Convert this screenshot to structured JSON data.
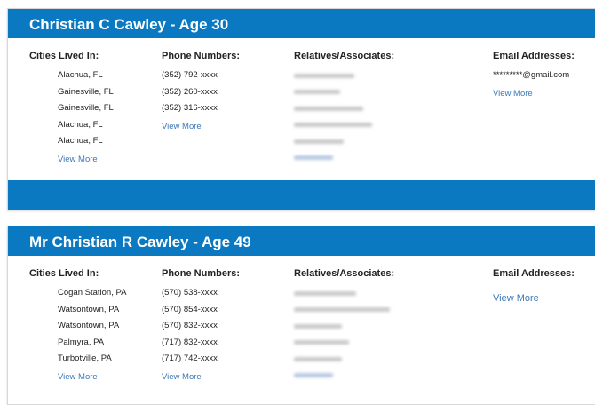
{
  "labels": {
    "cities": "Cities Lived In:",
    "phones": "Phone Numbers:",
    "relatives": "Relatives/Associates:",
    "emails": "Email Addresses:",
    "view_more": "View More"
  },
  "colors": {
    "header": "#0b79c1",
    "link": "#3d78b8"
  },
  "records": [
    {
      "title": "Christian C Cawley -  Age 30",
      "cities": [
        "Alachua, FL",
        "Gainesville, FL",
        "Gainesville, FL",
        "Alachua, FL",
        "Alachua, FL"
      ],
      "phones": [
        "(352) 792-xxxx",
        "(352) 260-xxxx",
        "(352) 316-xxxx"
      ],
      "relatives_blurred_count": 5,
      "emails": [
        "*********@gmail.com"
      ]
    },
    {
      "title": "Mr Christian R Cawley -  Age 49",
      "cities": [
        "Cogan Station, PA",
        "Watsontown, PA",
        "Watsontown, PA",
        "Palmyra, PA",
        "Turbotville, PA"
      ],
      "phones": [
        "(570) 538-xxxx",
        "(570) 854-xxxx",
        "(570) 832-xxxx",
        "(717) 832-xxxx",
        "(717) 742-xxxx"
      ],
      "relatives_blurred_count": 5,
      "emails": []
    }
  ]
}
